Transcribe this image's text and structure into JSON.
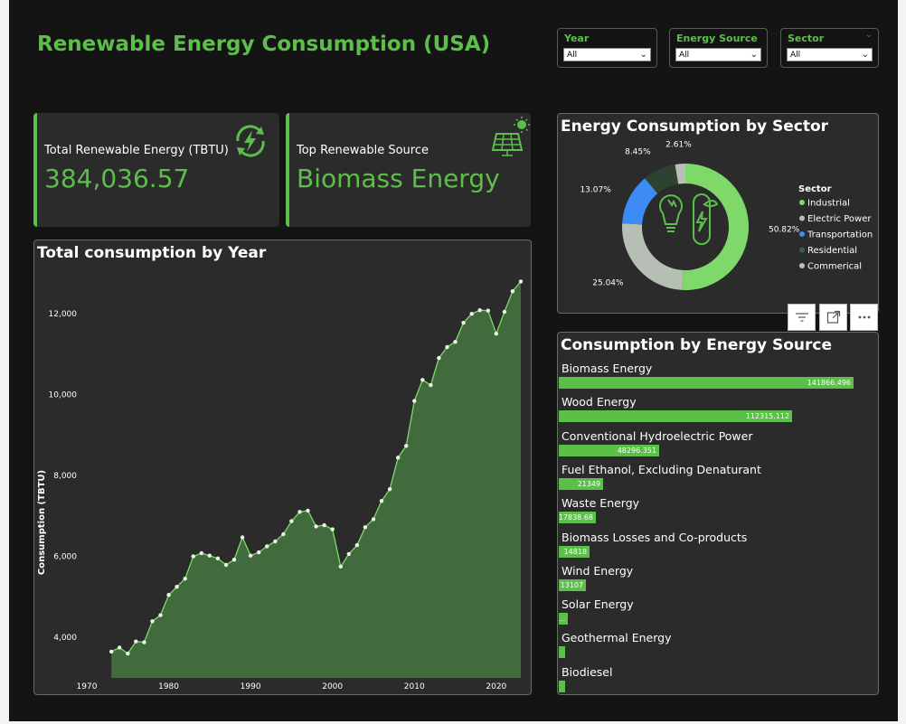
{
  "title": "Renewable Energy Consumption (USA)",
  "colors": {
    "accent": "#5cbf4a",
    "background": "#141414",
    "card": "#2b2b2b"
  },
  "slicers": [
    {
      "label": "Year",
      "value": "All"
    },
    {
      "label": "Energy Source",
      "value": "All"
    },
    {
      "label": "Sector",
      "value": "All"
    }
  ],
  "kpis": {
    "total": {
      "label": "Total Renewable Energy (TBTU)",
      "value": "384,036.57",
      "icon": "energy-refresh-icon"
    },
    "top_source": {
      "label": "Top Renewable Source",
      "value": "Biomass Energy",
      "icon": "solar-panel-icon"
    }
  },
  "line_chart": {
    "title": "Total consumption by Year",
    "ylabel": "Consumption (TBTU)",
    "yticks": [
      "4,000",
      "6,000",
      "8,000",
      "10,000",
      "12,000"
    ],
    "xticks": [
      "1970",
      "1980",
      "1990",
      "2000",
      "2010",
      "2020"
    ]
  },
  "donut": {
    "title": "Energy Consumption by Sector",
    "legend_title": "Sector",
    "center_icon": "eco-energy-icon"
  },
  "bar_chart": {
    "title": "Consumption by Energy Source"
  },
  "visual_tools": [
    "filter-icon",
    "focus-mode-icon",
    "more-options-icon"
  ],
  "chart_data": [
    {
      "type": "area",
      "title": "Total consumption by Year",
      "xlabel": "",
      "ylabel": "Consumption (TBTU)",
      "xlim": [
        1970,
        2023
      ],
      "ylim": [
        3000,
        13000
      ],
      "grid": false,
      "x": [
        1973,
        1974,
        1975,
        1976,
        1977,
        1978,
        1979,
        1980,
        1981,
        1982,
        1983,
        1984,
        1985,
        1986,
        1987,
        1988,
        1989,
        1990,
        1991,
        1992,
        1993,
        1994,
        1995,
        1996,
        1997,
        1998,
        1999,
        2000,
        2001,
        2002,
        2003,
        2004,
        2005,
        2006,
        2007,
        2008,
        2009,
        2010,
        2011,
        2012,
        2013,
        2014,
        2015,
        2016,
        2017,
        2018,
        2019,
        2020,
        2021,
        2022,
        2023
      ],
      "series": [
        {
          "values": [
            3650,
            3750,
            3600,
            3900,
            3880,
            4400,
            4550,
            5050,
            5250,
            5450,
            6000,
            6080,
            6020,
            5950,
            5790,
            5920,
            6470,
            6020,
            6100,
            6250,
            6370,
            6550,
            6870,
            7100,
            7130,
            6740,
            6770,
            6670,
            5750,
            6060,
            6280,
            6720,
            6920,
            7370,
            7660,
            8440,
            8730,
            9840,
            10360,
            10230,
            10900,
            11170,
            11300,
            11770,
            11990,
            12080,
            12070,
            11500,
            12040,
            12550,
            12790
          ]
        }
      ]
    },
    {
      "type": "pie",
      "title": "Energy Consumption by Sector",
      "legend_position": "right",
      "categories": [
        "Industrial",
        "Electric Power",
        "Transportation",
        "Residential",
        "Commerical"
      ],
      "values": [
        50.82,
        25.04,
        13.07,
        8.45,
        2.61
      ],
      "labels": [
        "50.82%",
        "25.04%",
        "13.07%",
        "8.45%",
        "2.61%"
      ],
      "colors": [
        "#7ed96a",
        "#b5bfb4",
        "#3d8cf5",
        "#2e4232",
        "#bdbdbd"
      ]
    },
    {
      "type": "bar",
      "orientation": "horizontal",
      "title": "Consumption by Energy Source",
      "categories": [
        "Biomass Energy",
        "Wood Energy",
        "Conventional Hydroelectric Power",
        "Fuel Ethanol, Excluding Denaturant",
        "Waste Energy",
        "Biomass Losses and Co-products",
        "Wind Energy",
        "Solar Energy",
        "Geothermal Energy",
        "Biodiesel"
      ],
      "values": [
        141866.496,
        112315.112,
        48296.351,
        21349,
        17838.68,
        14818,
        13107,
        4500,
        2600,
        2500
      ],
      "labels": [
        "141866.496",
        "112315.112",
        "48296.351",
        "21349",
        "17838.68",
        "14818",
        "13107",
        "...",
        "",
        ""
      ]
    }
  ]
}
